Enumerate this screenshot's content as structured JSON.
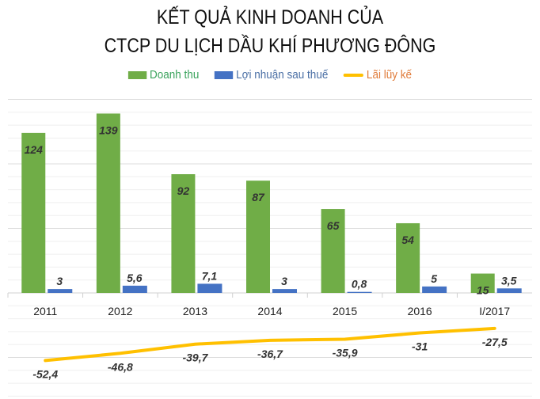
{
  "chart_data": {
    "type": "bar",
    "title": "KẾT QUẢ KINH DOANH CỦA",
    "subtitle": "CTCP DU LỊCH DẦU KHÍ PHƯƠNG ĐÔNG",
    "categories": [
      "2011",
      "2012",
      "2013",
      "2014",
      "2015",
      "2016",
      "I/2017"
    ],
    "series": [
      {
        "name": "Doanh thu",
        "type": "bar",
        "color": "#70AD47",
        "values": [
          124,
          139,
          92,
          87,
          65,
          54,
          15
        ],
        "labels": [
          "124",
          "139",
          "92",
          "87",
          "65",
          "54",
          "15"
        ]
      },
      {
        "name": "Lợi nhuận sau thuế",
        "type": "bar",
        "color": "#4472C4",
        "values": [
          3,
          5.6,
          7.1,
          3,
          0.8,
          5,
          3.5
        ],
        "labels": [
          "3",
          "5,6",
          "7,1",
          "3",
          "0,8",
          "5",
          "3,5"
        ]
      },
      {
        "name": "Lãi lũy kế",
        "type": "line",
        "color": "#FFC000",
        "values": [
          -52.4,
          -46.8,
          -39.7,
          -36.7,
          -35.9,
          -31,
          -27.5
        ],
        "labels": [
          "-52,4",
          "-46,8",
          "-39,7",
          "-36,7",
          "-35,9",
          "-31",
          "-27,5"
        ]
      }
    ],
    "ylim": [
      -80,
      150
    ],
    "grid": true,
    "legend": "top",
    "legend_text_colors": [
      "#3AA35C",
      "#4A6FA5",
      "#E07B39"
    ]
  }
}
